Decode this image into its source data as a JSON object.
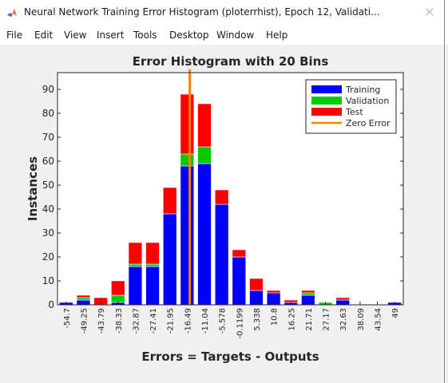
{
  "window": {
    "title": "Neural Network Training Error Histogram (ploterrhist), Epoch 12, Validati...",
    "close_glyph": "✕"
  },
  "menu": [
    "File",
    "Edit",
    "View",
    "Insert",
    "Tools",
    "Desktop",
    "Window",
    "Help"
  ],
  "colors": {
    "training": "#0000ff",
    "validation": "#00cc00",
    "test": "#ff0000",
    "zero_error": "#ff8000"
  },
  "chart_data": {
    "type": "bar",
    "stacked": true,
    "title": "Error Histogram with 20 Bins",
    "xlabel": "Errors = Targets - Outputs",
    "ylabel": "Instances",
    "categories": [
      "-54.7",
      "-49.25",
      "-43.79",
      "-38.33",
      "-32.87",
      "-27.41",
      "-21.95",
      "-16.49",
      "-11.04",
      "-5.578",
      "-0.1199",
      "5.338",
      "10.8",
      "16.25",
      "21.71",
      "27.17",
      "32.63",
      "38.09",
      "43.54",
      "49"
    ],
    "series": [
      {
        "name": "Training",
        "values": [
          1,
          2,
          0,
          1,
          16,
          16,
          38,
          58,
          59,
          42,
          20,
          6,
          5,
          1,
          4,
          0,
          2,
          0,
          0,
          1
        ]
      },
      {
        "name": "Validation",
        "values": [
          0,
          1,
          0,
          3,
          1,
          1,
          0,
          5,
          7,
          0,
          0,
          0,
          0,
          0,
          1,
          1,
          0,
          0,
          0,
          0
        ]
      },
      {
        "name": "Test",
        "values": [
          0,
          1,
          3,
          6,
          9,
          9,
          11,
          25,
          18,
          6,
          3,
          5,
          1,
          1,
          1,
          0,
          1,
          0,
          0,
          0
        ]
      }
    ],
    "zero_error_line": {
      "name": "Zero Error",
      "x_bin": 7.15
    },
    "ylim": [
      0,
      97
    ],
    "yticks": [
      0,
      10,
      20,
      30,
      40,
      50,
      60,
      70,
      80,
      90
    ],
    "legend_position": "top-right",
    "grid": false
  }
}
